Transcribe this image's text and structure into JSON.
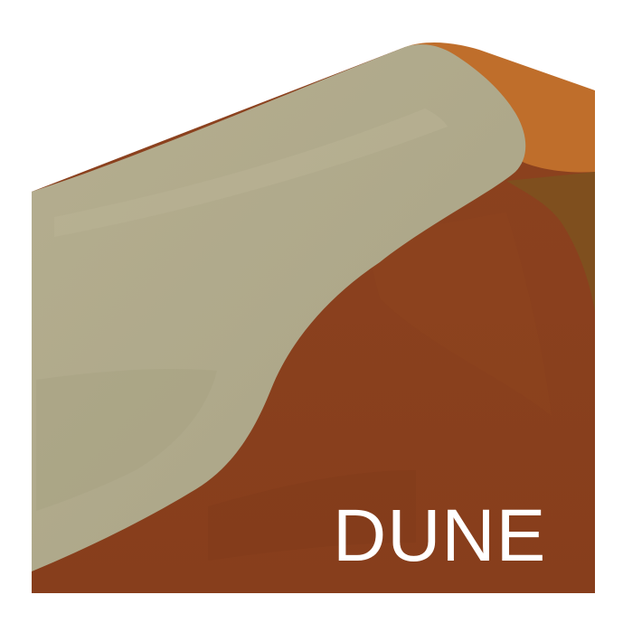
{
  "poster": {
    "title": "DUNE"
  },
  "colors": {
    "background": "#ffffff",
    "sand_pale": "#b1aa8b",
    "sand_pale_shadow": "#a9a487",
    "slope_rust": "#8a401e",
    "slope_rust_dark": "#7e391a",
    "ridge_orange": "#bf6e2b",
    "shadow_brown": "#7f4f1e",
    "title_text": "#ffffff"
  }
}
